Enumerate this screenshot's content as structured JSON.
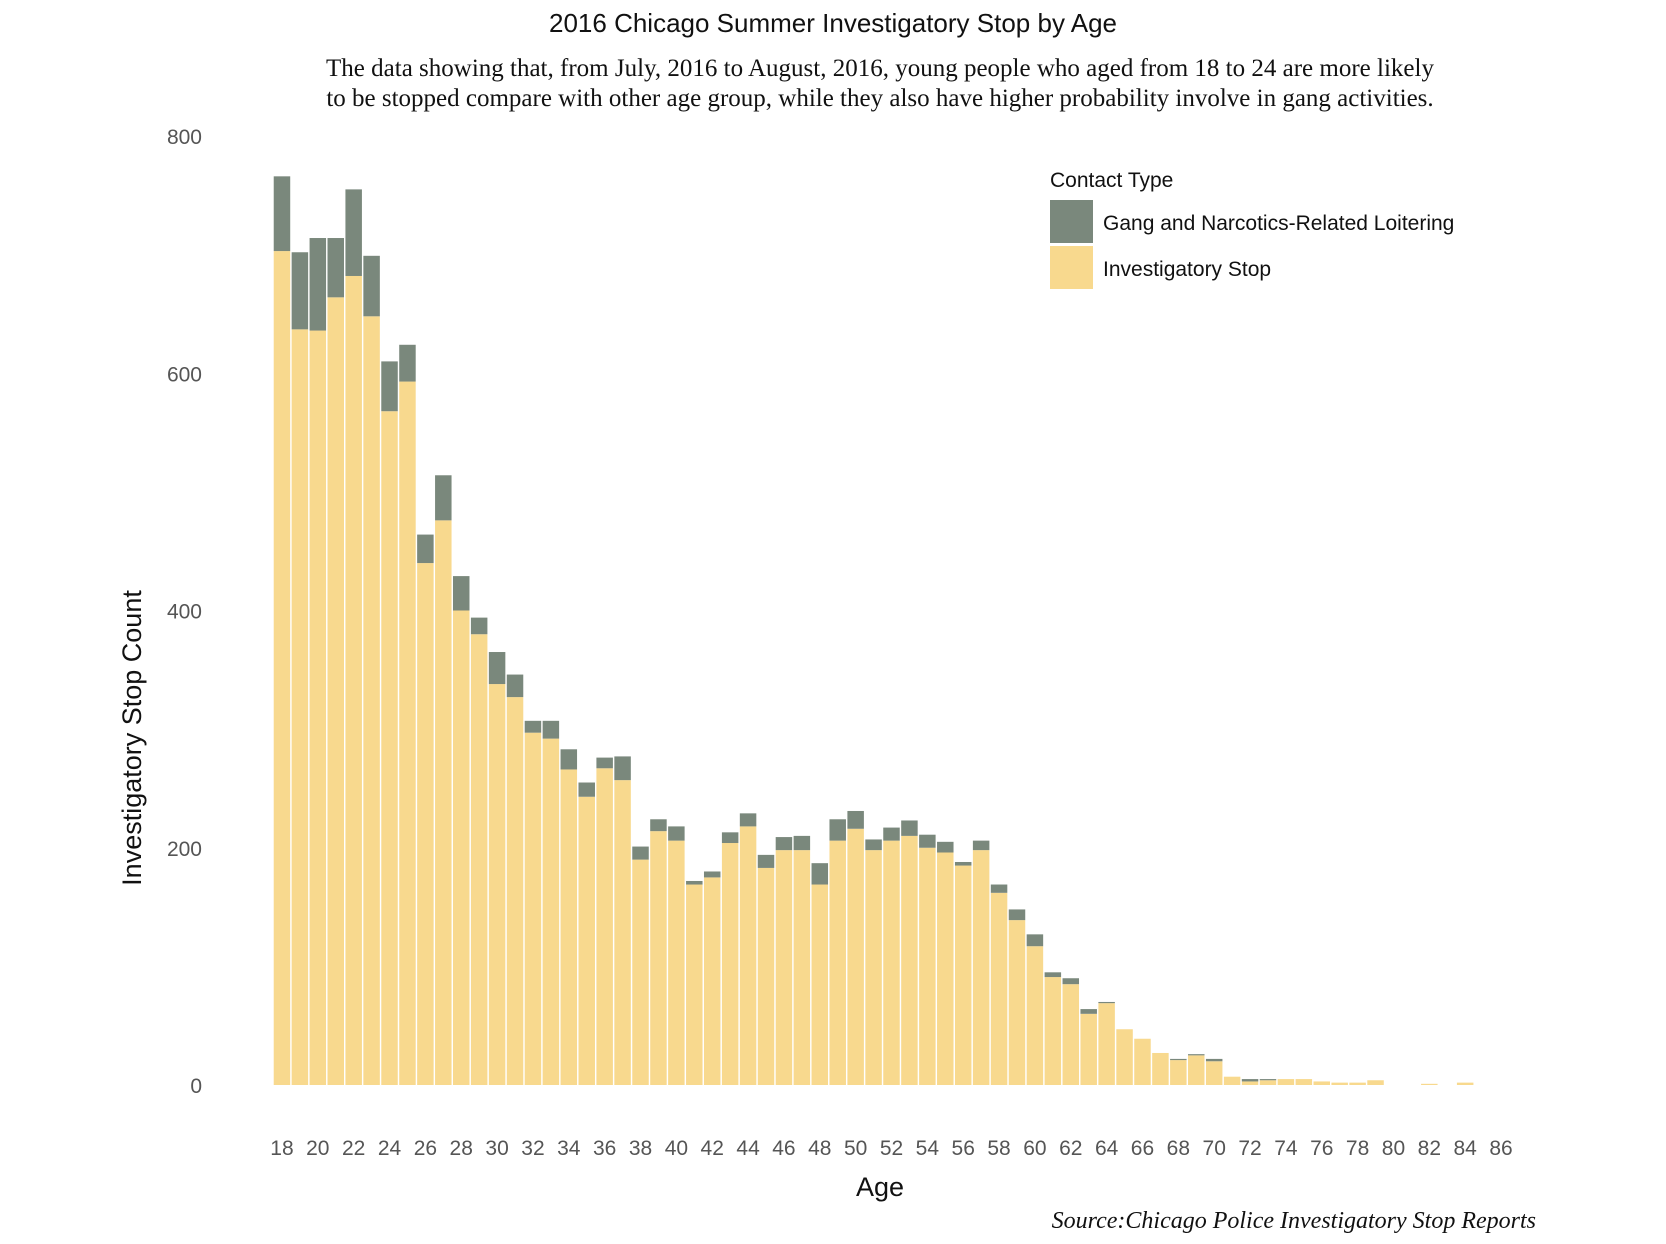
{
  "chart_data": {
    "type": "bar",
    "stacked": true,
    "title": "2016 Chicago Summer Investigatory Stop by Age",
    "subtitle_lines": [
      "The data showing that, from July, 2016 to August, 2016, young people who aged from 18 to 24 are more likely",
      "to be stopped compare with other age group, while they also have higher probability involve in gang activities."
    ],
    "caption": "Source:Chicago Police Investigatory Stop Reports",
    "xlabel": "Age",
    "ylabel": "Investigatory Stop Count",
    "ylim": [
      0,
      800
    ],
    "yticks": [
      0,
      200,
      400,
      600,
      800
    ],
    "xticks": [
      18,
      20,
      22,
      24,
      26,
      28,
      30,
      32,
      34,
      36,
      38,
      40,
      42,
      44,
      46,
      48,
      50,
      52,
      54,
      56,
      58,
      60,
      62,
      64,
      66,
      68,
      70,
      72,
      74,
      76,
      78,
      80,
      82,
      84,
      86
    ],
    "grid": false,
    "legend": {
      "title": "Contact Type",
      "position": "top-right",
      "entries": [
        {
          "label": "Gang and Narcotics-Related Loitering",
          "color": "#7a887c"
        },
        {
          "label": "Investigatory Stop",
          "color": "#f8d98e"
        }
      ]
    },
    "colors": {
      "gang": "#7a887c",
      "investigatory": "#f8d98e"
    },
    "ages": [
      18,
      19,
      20,
      21,
      22,
      23,
      24,
      25,
      26,
      27,
      28,
      29,
      30,
      31,
      32,
      33,
      34,
      35,
      36,
      37,
      38,
      39,
      40,
      41,
      42,
      43,
      44,
      45,
      46,
      47,
      48,
      49,
      50,
      51,
      52,
      53,
      54,
      55,
      56,
      57,
      58,
      59,
      60,
      61,
      62,
      63,
      64,
      65,
      66,
      67,
      68,
      69,
      70,
      71,
      72,
      73,
      74,
      75,
      76,
      77,
      78,
      79,
      80,
      81,
      82,
      83,
      84
    ],
    "series": [
      {
        "name": "Investigatory Stop",
        "values": [
          703,
          637,
          636,
          664,
          682,
          648,
          568,
          593,
          440,
          476,
          400,
          380,
          338,
          327,
          297,
          292,
          266,
          243,
          267,
          257,
          190,
          214,
          206,
          169,
          175,
          204,
          218,
          183,
          198,
          198,
          169,
          206,
          216,
          198,
          206,
          210,
          200,
          196,
          185,
          198,
          162,
          139,
          117,
          91,
          85,
          60,
          69,
          47,
          39,
          27,
          21,
          25,
          20,
          7,
          3,
          4,
          5,
          5,
          3,
          2,
          2,
          4,
          0,
          0,
          1,
          0,
          2
        ]
      },
      {
        "name": "Gang and Narcotics-Related Loitering",
        "values": [
          63,
          65,
          78,
          50,
          73,
          51,
          42,
          31,
          24,
          38,
          29,
          14,
          27,
          19,
          10,
          15,
          17,
          12,
          9,
          20,
          11,
          10,
          12,
          3,
          5,
          9,
          11,
          11,
          11,
          12,
          18,
          18,
          15,
          9,
          11,
          13,
          11,
          9,
          3,
          8,
          7,
          9,
          10,
          4,
          5,
          4,
          1,
          0,
          0,
          0,
          1,
          1,
          2,
          0,
          2,
          1,
          0,
          0,
          0,
          0,
          0,
          0,
          0,
          0,
          0,
          0,
          0
        ]
      }
    ]
  }
}
